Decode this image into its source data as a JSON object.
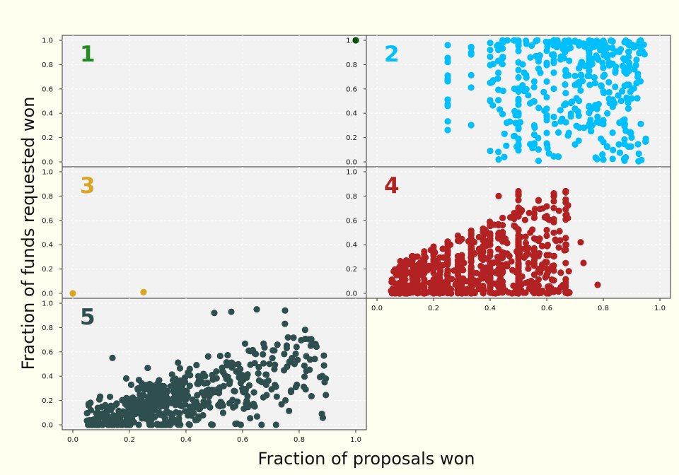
{
  "chart_data": {
    "type": "scatter",
    "xlabel": "Fraction of proposals won",
    "ylabel": "Fraction of funds requested won",
    "xlim": [
      0,
      1
    ],
    "ylim": [
      0,
      1
    ],
    "x_ticks": [
      "0.0",
      "0.2",
      "0.4",
      "0.6",
      "0.8",
      "1.0"
    ],
    "y_ticks": [
      "0.0",
      "0.2",
      "0.4",
      "0.6",
      "0.8",
      "1.0"
    ],
    "grid": true,
    "layout": "faceted 3 rows x 2 columns, panels in row order 1,2 / 3,4 / 5",
    "panels": [
      {
        "label": "1",
        "color": "#228b22",
        "points_dark": "#006400",
        "points": [
          [
            1.0,
            1.0
          ]
        ]
      },
      {
        "label": "2",
        "color": "#00bfff",
        "seed": 2,
        "n_points": 420
      },
      {
        "label": "3",
        "color": "#daa520",
        "points": [
          [
            0.0,
            0.0
          ],
          [
            0.25,
            0.01
          ]
        ]
      },
      {
        "label": "4",
        "color": "#b22222",
        "seed": 4,
        "n_points": 850
      },
      {
        "label": "5",
        "color": "#2f4f4f",
        "seed": 5,
        "n_points": 560
      }
    ]
  }
}
